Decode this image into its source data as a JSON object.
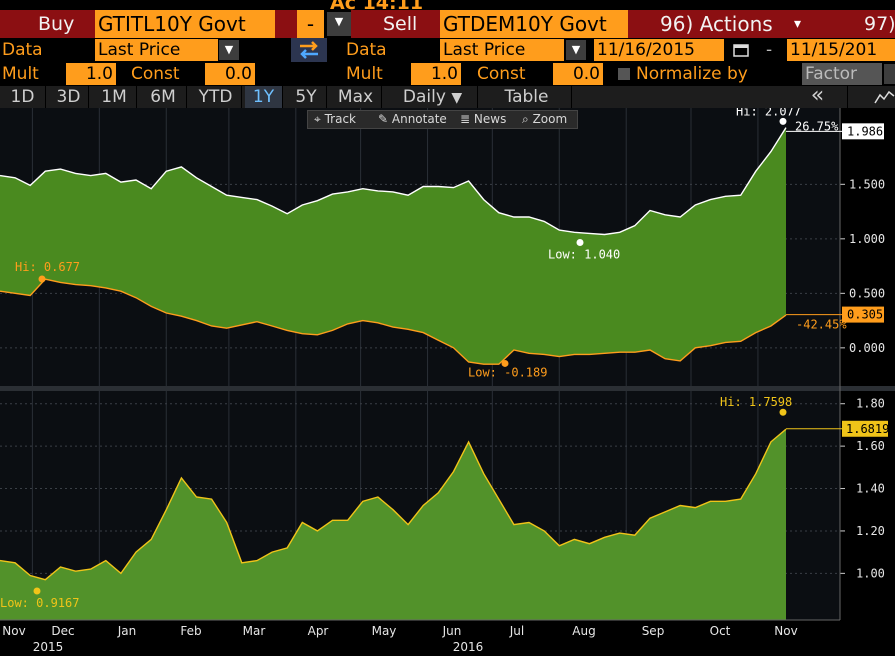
{
  "header": {
    "top_partial": "Ac 14:11",
    "buy_label": "Buy",
    "buy_ticker": "GTITL10Y Govt",
    "minus": "-",
    "sell_label": "Sell",
    "sell_ticker": "GTDEM10Y Govt",
    "actions": "96) Actions",
    "actions_arrow": "▾",
    "right_code": "97)"
  },
  "row_data": {
    "data_label": "Data",
    "buy_field": "Last Price",
    "sell_field": "Last Price",
    "start_date": "11/16/2015",
    "date_sep": "-",
    "end_date": "11/15/201"
  },
  "row_mult": {
    "mult_label": "Mult",
    "buy_mult": "1.0",
    "const_label": "Const",
    "buy_const": "0.0",
    "sell_mult": "1.0",
    "sell_const": "0.0",
    "normalize_label": "Normalize by",
    "factor_label": "Factor"
  },
  "timeframes": [
    "1D",
    "3D",
    "1M",
    "6M",
    "YTD",
    "1Y",
    "5Y",
    "Max"
  ],
  "active_timeframe": "1Y",
  "frequency": "Daily",
  "table_label": "Table",
  "collapse_glyph": "«",
  "chart_tools": [
    "Track",
    "Annotate",
    "News",
    "Zoom"
  ],
  "colors": {
    "orange": "#ff9d1c",
    "header_red": "#8b0f12",
    "area_green": "#4a8a1f",
    "spread_fill": "#52922a",
    "yellow_line": "#f0c419",
    "active_blue": "#6fc0ff"
  },
  "chart_data": [
    {
      "type": "area",
      "name": "yields",
      "ylim": [
        -0.35,
        2.2
      ],
      "yticks": [
        0.0,
        0.5,
        1.0,
        1.5
      ],
      "yticklabels": [
        "0.000",
        "0.500",
        "1.000",
        "1.500"
      ],
      "x": [
        "2015-11-16",
        "2015-11-23",
        "2015-11-30",
        "2015-12-07",
        "2015-12-14",
        "2015-12-21",
        "2015-12-28",
        "2016-01-04",
        "2016-01-11",
        "2016-01-18",
        "2016-01-25",
        "2016-02-01",
        "2016-02-08",
        "2016-02-15",
        "2016-02-22",
        "2016-02-29",
        "2016-03-07",
        "2016-03-14",
        "2016-03-21",
        "2016-03-28",
        "2016-04-04",
        "2016-04-11",
        "2016-04-18",
        "2016-04-25",
        "2016-05-02",
        "2016-05-09",
        "2016-05-16",
        "2016-05-23",
        "2016-05-30",
        "2016-06-06",
        "2016-06-13",
        "2016-06-20",
        "2016-06-27",
        "2016-07-04",
        "2016-07-11",
        "2016-07-18",
        "2016-07-25",
        "2016-08-01",
        "2016-08-08",
        "2016-08-15",
        "2016-08-22",
        "2016-08-29",
        "2016-09-05",
        "2016-09-12",
        "2016-09-19",
        "2016-09-26",
        "2016-10-03",
        "2016-10-10",
        "2016-10-17",
        "2016-10-24",
        "2016-10-31",
        "2016-11-07",
        "2016-11-14"
      ],
      "series": [
        {
          "name": "GTITL10Y Govt",
          "values": [
            1.58,
            1.56,
            1.49,
            1.62,
            1.64,
            1.6,
            1.58,
            1.6,
            1.52,
            1.54,
            1.46,
            1.62,
            1.66,
            1.56,
            1.48,
            1.4,
            1.38,
            1.36,
            1.3,
            1.23,
            1.31,
            1.35,
            1.41,
            1.43,
            1.46,
            1.44,
            1.43,
            1.4,
            1.48,
            1.48,
            1.47,
            1.53,
            1.36,
            1.24,
            1.2,
            1.2,
            1.16,
            1.08,
            1.06,
            1.05,
            1.04,
            1.06,
            1.12,
            1.26,
            1.22,
            1.2,
            1.31,
            1.36,
            1.39,
            1.4,
            1.62,
            1.8,
            2.02
          ],
          "color": "#ffffff",
          "hi": 2.077,
          "low": 1.04,
          "last": 1.986,
          "pct_change": "26.75%"
        },
        {
          "name": "GTDEM10Y Govt",
          "values": [
            0.52,
            0.5,
            0.48,
            0.63,
            0.6,
            0.58,
            0.57,
            0.55,
            0.52,
            0.46,
            0.38,
            0.32,
            0.29,
            0.25,
            0.2,
            0.18,
            0.21,
            0.24,
            0.2,
            0.16,
            0.13,
            0.12,
            0.16,
            0.22,
            0.25,
            0.23,
            0.19,
            0.17,
            0.14,
            0.07,
            0.0,
            -0.13,
            -0.15,
            -0.15,
            -0.02,
            -0.05,
            -0.06,
            -0.08,
            -0.06,
            -0.06,
            -0.05,
            -0.04,
            -0.04,
            -0.02,
            -0.1,
            -0.12,
            0.0,
            0.02,
            0.05,
            0.06,
            0.14,
            0.2,
            0.3
          ],
          "color": "#ff9d1c",
          "hi": 0.677,
          "low": -0.189,
          "last": 0.305,
          "pct_change": "-42.45%"
        }
      ],
      "labels": {
        "buy_hi": "Hi: 2.077",
        "buy_low": "Low: 1.040",
        "buy_last": "1.986",
        "buy_pct": "26.75%",
        "sell_hi": "Hi: 0.677",
        "sell_low": "Low: -0.189",
        "sell_last": "0.305",
        "sell_pct": "-42.45%"
      }
    },
    {
      "type": "area",
      "name": "spread",
      "ylim": [
        0.78,
        1.86
      ],
      "yticks": [
        1.0,
        1.2,
        1.4,
        1.6,
        1.8
      ],
      "yticklabels": [
        "1.00",
        "1.20",
        "1.40",
        "1.60",
        "1.80"
      ],
      "series": [
        {
          "name": "GTITL10Y Govt - GTDEM10Y Govt",
          "values": [
            1.06,
            1.05,
            0.99,
            0.97,
            1.03,
            1.01,
            1.02,
            1.06,
            1.0,
            1.1,
            1.16,
            1.3,
            1.45,
            1.36,
            1.35,
            1.24,
            1.05,
            1.06,
            1.1,
            1.12,
            1.24,
            1.2,
            1.25,
            1.25,
            1.34,
            1.36,
            1.3,
            1.23,
            1.32,
            1.38,
            1.48,
            1.62,
            1.47,
            1.35,
            1.23,
            1.24,
            1.2,
            1.13,
            1.16,
            1.14,
            1.17,
            1.19,
            1.18,
            1.26,
            1.29,
            1.32,
            1.31,
            1.34,
            1.34,
            1.35,
            1.47,
            1.62,
            1.68
          ],
          "color": "#f0c419",
          "hi": 1.7598,
          "low": 0.9167,
          "last": 1.6819
        }
      ],
      "labels": {
        "hi": "Hi: 1.7598",
        "low": "Low: 0.9167",
        "last": "1.6819"
      }
    }
  ],
  "x_axis": {
    "months": [
      "Nov",
      "Dec",
      "Jan",
      "Feb",
      "Mar",
      "Apr",
      "May",
      "Jun",
      "Jul",
      "Aug",
      "Sep",
      "Oct",
      "Nov"
    ],
    "year_2015": "2015",
    "year_2016": "2016"
  }
}
